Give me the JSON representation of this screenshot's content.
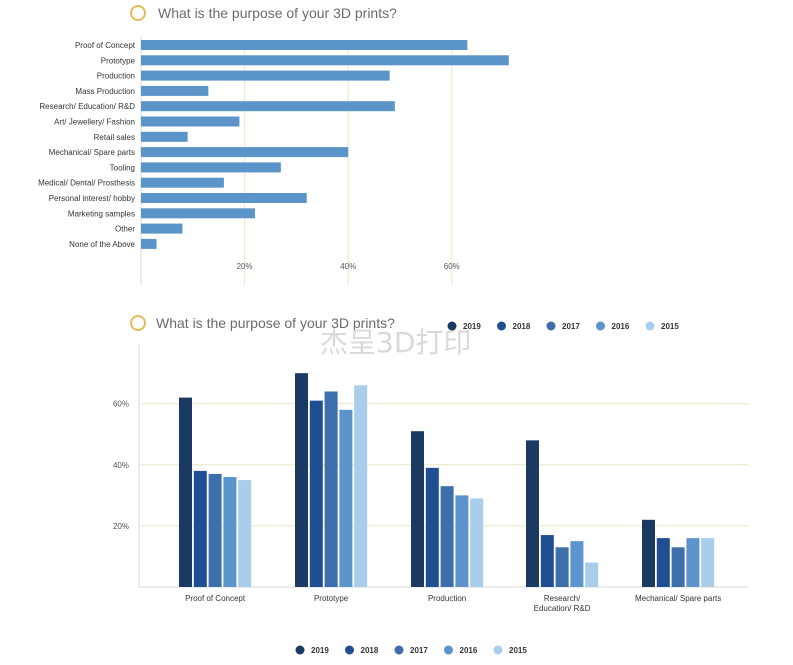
{
  "watermark": "杰呈3D打印",
  "chart_data": [
    {
      "type": "bar",
      "orientation": "horizontal",
      "title": "What is the purpose of your 3D prints?",
      "categories": [
        "Proof of Concept",
        "Prototype",
        "Production",
        "Mass Production",
        "Research/ Education/ R&D",
        "Art/ Jewellery/ Fashion",
        "Retail sales",
        "Mechanical/ Spare parts",
        "Tooling",
        "Medical/ Dental/ Prosthesis",
        "Personal interest/ hobby",
        "Marketing samples",
        "Other",
        "None of the Above"
      ],
      "values": [
        63,
        71,
        48,
        13,
        49,
        19,
        9,
        40,
        27,
        16,
        32,
        22,
        8,
        3
      ],
      "xticks": [
        "20%",
        "40%",
        "60%"
      ],
      "xtick_values": [
        20,
        40,
        60
      ],
      "xlim": [
        0,
        80
      ],
      "grid": true,
      "color": "#5b94c8"
    },
    {
      "type": "bar",
      "orientation": "vertical",
      "title": "What is the purpose of your 3D prints?",
      "categories": [
        "Proof of Concept",
        "Prototype",
        "Production",
        "Research/ Education/ R&D",
        "Mechanical/ Spare parts"
      ],
      "category_lines": [
        [
          "Proof of Concept"
        ],
        [
          "Prototype"
        ],
        [
          "Production"
        ],
        [
          "Research/",
          "Education/ R&D"
        ],
        [
          "Mechanical/ Spare parts"
        ]
      ],
      "series": [
        {
          "name": "2019",
          "color": "#1b3a62",
          "values": [
            62,
            70,
            51,
            48,
            22
          ]
        },
        {
          "name": "2018",
          "color": "#1f4f92",
          "values": [
            38,
            61,
            39,
            17,
            16
          ]
        },
        {
          "name": "2017",
          "color": "#3d6fad",
          "values": [
            37,
            64,
            33,
            13,
            13
          ]
        },
        {
          "name": "2016",
          "color": "#5c95cd",
          "values": [
            36,
            58,
            30,
            15,
            16
          ]
        },
        {
          "name": "2015",
          "color": "#a9cdea",
          "values": [
            35,
            66,
            29,
            8,
            16
          ]
        }
      ],
      "yticks": [
        "20%",
        "40%",
        "60%"
      ],
      "ytick_values": [
        20,
        40,
        60
      ],
      "ylim": [
        0,
        80
      ],
      "grid": true,
      "legend": {
        "top": [
          "2019",
          "2018",
          "2017",
          "2016",
          "2015"
        ],
        "bottom": [
          "2019",
          "2018",
          "2017",
          "2016",
          "2015"
        ]
      }
    }
  ]
}
